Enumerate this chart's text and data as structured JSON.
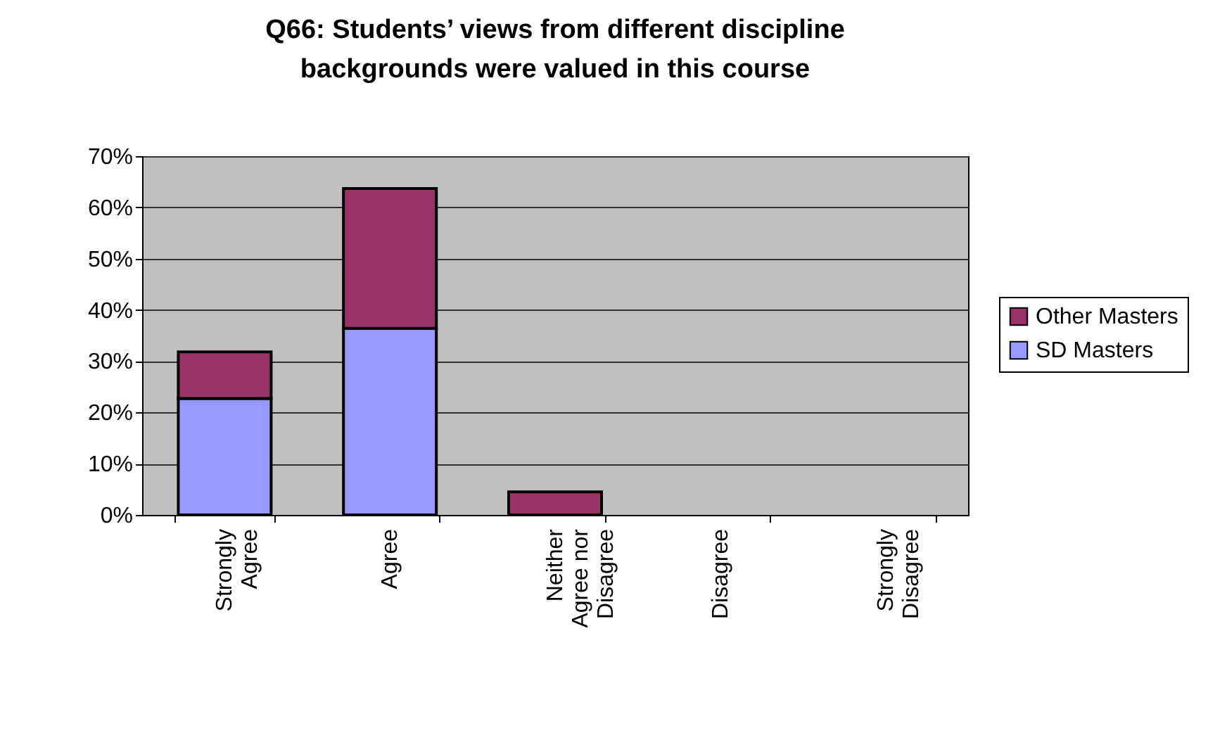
{
  "chart_data": {
    "type": "bar",
    "title": [
      "Q66: Students’ views from different discipline",
      "backgrounds were valued in this course"
    ],
    "categories": [
      "Strongly Agree",
      "Agree",
      "Neither Agree nor Disagree",
      "Disagree",
      "Strongly Disagree"
    ],
    "stacked": true,
    "series": [
      {
        "name": "SD Masters",
        "color": "#9999ff",
        "values": [
          22.7,
          36.4,
          0,
          0,
          0
        ]
      },
      {
        "name": "Other Masters",
        "color": "#993366",
        "values": [
          9.1,
          27.3,
          4.5,
          0,
          0
        ]
      }
    ],
    "ylim": [
      0,
      70
    ],
    "yticks": [
      {
        "value": 0,
        "label": "0%"
      },
      {
        "value": 10,
        "label": "10%"
      },
      {
        "value": 20,
        "label": "20%"
      },
      {
        "value": 30,
        "label": "30%"
      },
      {
        "value": 40,
        "label": "40%"
      },
      {
        "value": 50,
        "label": "50%"
      },
      {
        "value": 60,
        "label": "60%"
      },
      {
        "value": 70,
        "label": "70%"
      }
    ],
    "grid": "y",
    "legend": "right"
  }
}
